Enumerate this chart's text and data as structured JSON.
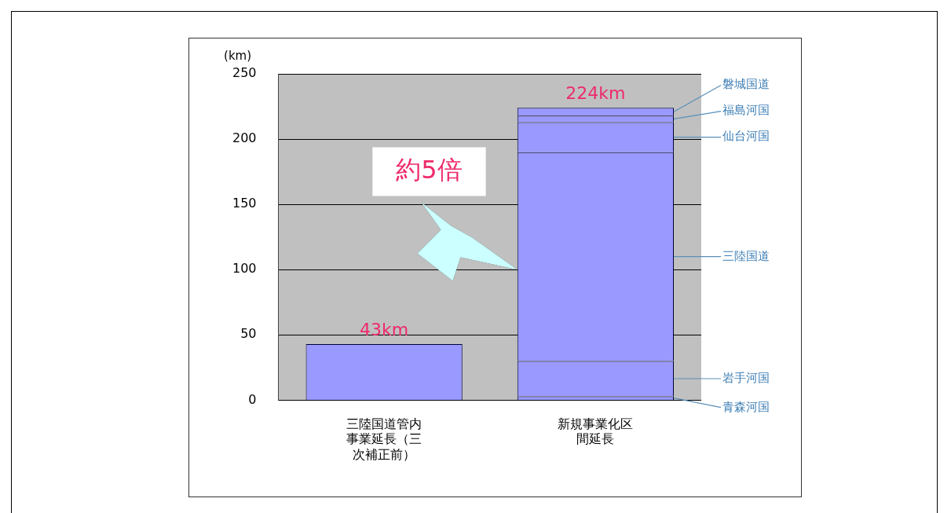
{
  "chart_data": {
    "type": "bar",
    "ylabel": "(km)",
    "categories": [
      "三陸国道管内事業延長（三次補正前）",
      "新規事業化区間延長"
    ],
    "stacked": true,
    "ylim": [
      0,
      250
    ],
    "yticks": [
      0,
      50,
      100,
      150,
      200,
      250
    ],
    "grid": "y",
    "legend": false,
    "series": [
      {
        "color": "#9999ff",
        "values": [
          43,
          null
        ]
      },
      {
        "name": "青森河国",
        "color": "#9999ff",
        "values": [
          null,
          3
        ]
      },
      {
        "name": "岩手河国",
        "color": "#9999ff",
        "values": [
          null,
          27
        ]
      },
      {
        "name": "三陸国道",
        "color": "#9999ff",
        "values": [
          null,
          160
        ]
      },
      {
        "name": "仙台河国",
        "color": "#9999ff",
        "values": [
          null,
          23
        ]
      },
      {
        "name": "福島河国",
        "color": "#9999ff",
        "values": [
          null,
          5
        ]
      },
      {
        "name": "磐城国道",
        "color": "#9999ff",
        "values": [
          null,
          6
        ]
      }
    ],
    "totals": [
      "43km",
      "224km"
    ],
    "annotations": [
      "約5倍"
    ]
  }
}
